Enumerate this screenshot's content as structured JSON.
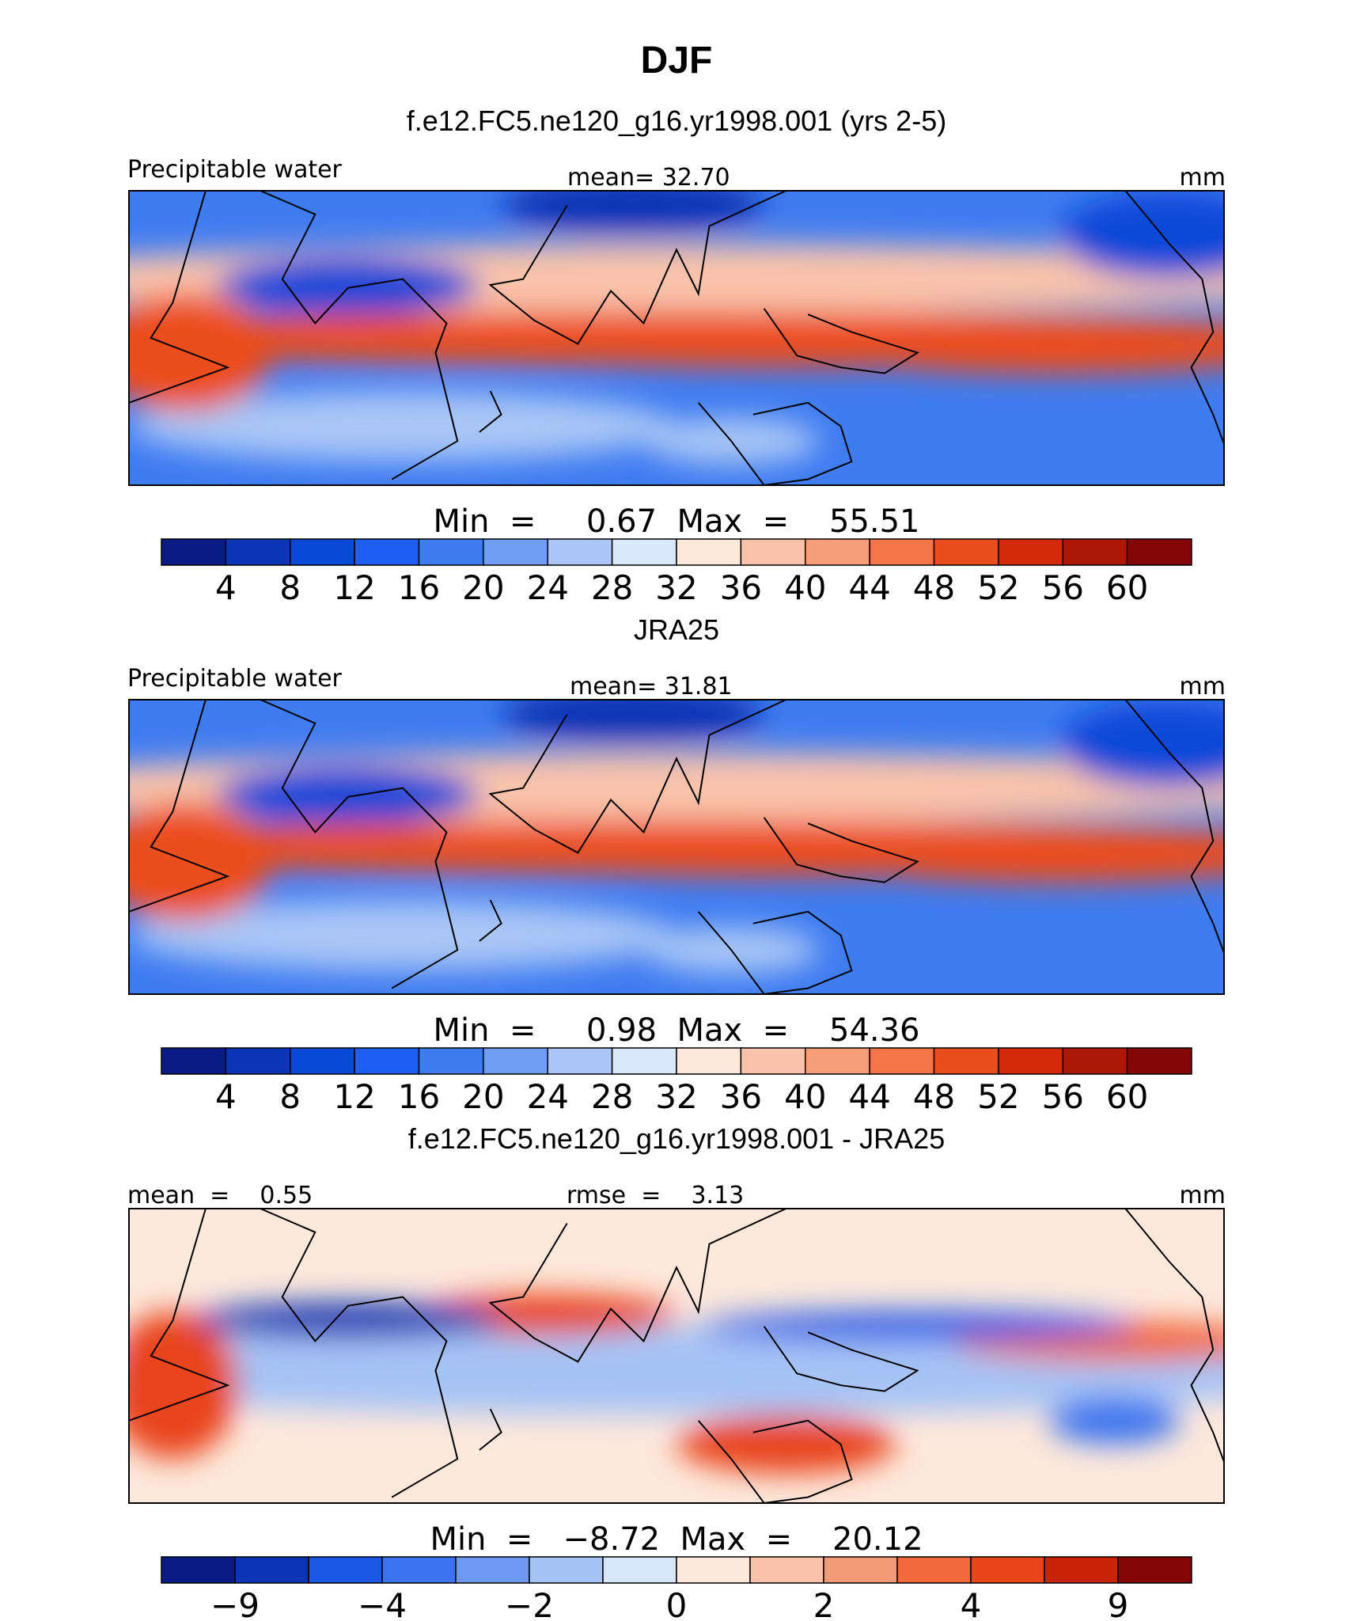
{
  "figure": {
    "title": "DJF"
  },
  "colors": {
    "abs_palette": [
      "#0a1b86",
      "#0a35b4",
      "#0a48d8",
      "#1f5ef2",
      "#3f7cf1",
      "#6f9ef3",
      "#a9c6f6",
      "#d9e8fb",
      "#fde8dc",
      "#f9c3ab",
      "#f69e79",
      "#f47548",
      "#ec4d1e",
      "#d52a08",
      "#ad1705",
      "#850606"
    ],
    "diff_palette": [
      "#0a1b86",
      "#0a35b4",
      "#1b58e6",
      "#3a74ee",
      "#6e98f1",
      "#a6c3f5",
      "#d6e6fb",
      "#fde8dc",
      "#f9c3ab",
      "#f59a76",
      "#f2693c",
      "#e8451a",
      "#c82306",
      "#850606"
    ],
    "coast": "#000000"
  },
  "chart_data": [
    {
      "type": "heatmap",
      "panel": "model",
      "title": "f.e12.FC5.ne120_g16.yr1998.001 (yrs 2-5)",
      "left_label": "Precipitable water",
      "center_label": "mean=   32.70",
      "right_label": "mm",
      "mean": 32.7,
      "stats_label": "Min  =     0.67  Max  =    55.51",
      "min": 0.67,
      "max": 55.51,
      "levels": [
        4,
        8,
        12,
        16,
        20,
        24,
        28,
        32,
        36,
        40,
        44,
        48,
        52,
        56,
        60
      ],
      "colorbar_labels": [
        "4",
        "8",
        "12",
        "16",
        "20",
        "24",
        "28",
        "32",
        "36",
        "40",
        "44",
        "48",
        "52",
        "56",
        "60"
      ],
      "palette": "abs_palette",
      "field_style": "absolute"
    },
    {
      "type": "heatmap",
      "panel": "obs",
      "title": "JRA25",
      "left_label": "Precipitable water",
      "center_label": "mean=   31.81",
      "right_label": "mm",
      "mean": 31.81,
      "stats_label": "Min  =     0.98  Max  =    54.36",
      "min": 0.98,
      "max": 54.36,
      "levels": [
        4,
        8,
        12,
        16,
        20,
        24,
        28,
        32,
        36,
        40,
        44,
        48,
        52,
        56,
        60
      ],
      "colorbar_labels": [
        "4",
        "8",
        "12",
        "16",
        "20",
        "24",
        "28",
        "32",
        "36",
        "40",
        "44",
        "48",
        "52",
        "56",
        "60"
      ],
      "palette": "abs_palette",
      "field_style": "absolute"
    },
    {
      "type": "heatmap",
      "panel": "diff",
      "title": "f.e12.FC5.ne120_g16.yr1998.001 - JRA25",
      "left_label": "mean  =    0.55",
      "center_label": "rmse  =    3.13",
      "right_label": "mm",
      "mean": 0.55,
      "rmse": 3.13,
      "stats_label": "Min  =   −8.72  Max  =    20.12",
      "min": -8.72,
      "max": 20.12,
      "levels": [
        -9,
        -6,
        -4,
        -3,
        -2,
        -1,
        0,
        1,
        2,
        3,
        4,
        6,
        9
      ],
      "colorbar_labels": [
        "−9",
        "−4",
        "−2",
        "0",
        "2",
        "4",
        "9"
      ],
      "colorbar_label_positions": [
        1,
        3,
        5,
        7,
        9,
        11,
        13
      ],
      "palette": "diff_palette",
      "field_style": "difference"
    }
  ]
}
